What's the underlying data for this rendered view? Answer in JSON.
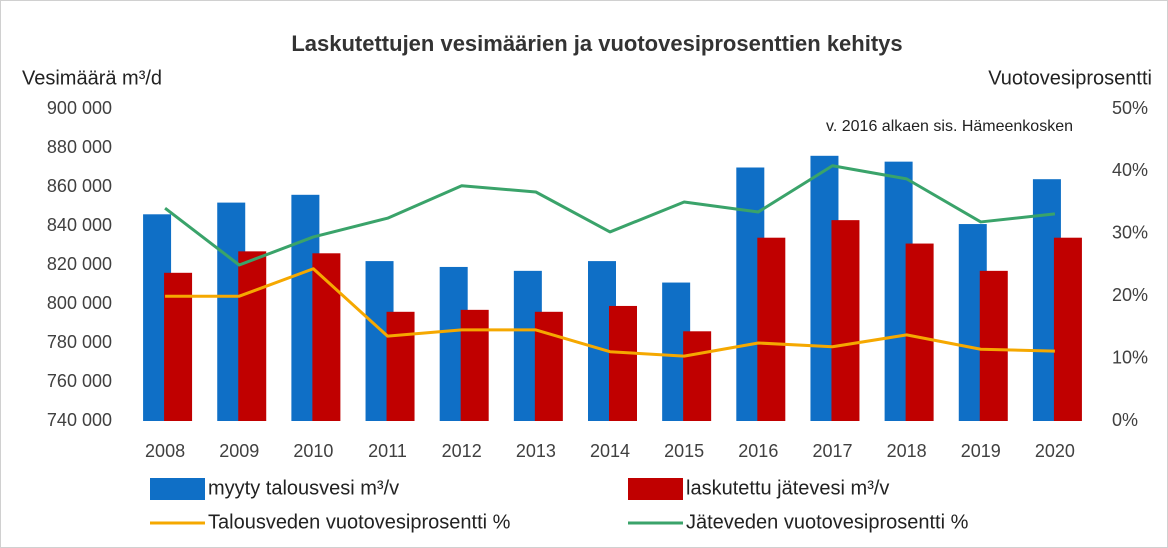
{
  "chart_data": {
    "type": "bar",
    "title": "Laskutettujen vesimäärien ja vuotovesiprosenttien kehitys",
    "y_label": "Vesimäärä m³/d",
    "y2_label": "Vuotovesiprosentti",
    "annotation": "v. 2016 alkaen sis. Hämeenkosken",
    "categories": [
      "2008",
      "2009",
      "2010",
      "2011",
      "2012",
      "2013",
      "2014",
      "2015",
      "2016",
      "2017",
      "2018",
      "2019",
      "2020"
    ],
    "series": [
      {
        "name": "myyty talousvesi m³/v",
        "type": "bar",
        "color": "#0f6fc6",
        "values": [
          846000,
          852000,
          856000,
          822000,
          819000,
          817000,
          822000,
          811000,
          870000,
          876000,
          873000,
          841000,
          864000
        ]
      },
      {
        "name": "laskutettu jätevesi m³/v",
        "type": "bar",
        "color": "#c00000",
        "values": [
          816000,
          827000,
          826000,
          796000,
          797000,
          796000,
          799000,
          786000,
          834000,
          843000,
          831000,
          817000,
          834000
        ]
      },
      {
        "name": "Talousveden vuotovesiprosentti %",
        "type": "line",
        "axis": "y2",
        "color": "#f5a800",
        "values": [
          20,
          20,
          24.4,
          13.6,
          14.6,
          14.6,
          11.1,
          10.4,
          12.5,
          11.9,
          13.8,
          11.5,
          11.2
        ]
      },
      {
        "name": "Jäteveden vuotovesiprosentti %",
        "type": "line",
        "axis": "y2",
        "color": "#3aa36a",
        "values": [
          34.1,
          25,
          29.5,
          32.5,
          37.7,
          36.7,
          30.3,
          35.1,
          33.5,
          40.9,
          38.8,
          31.9,
          33.2
        ]
      }
    ],
    "ylim": [
      740000,
      900000
    ],
    "yticks": [
      {
        "value": 740000,
        "label": "740 000"
      },
      {
        "value": 760000,
        "label": "760 000"
      },
      {
        "value": 780000,
        "label": "780 000"
      },
      {
        "value": 800000,
        "label": "800 000"
      },
      {
        "value": 820000,
        "label": "820 000"
      },
      {
        "value": 840000,
        "label": "840 000"
      },
      {
        "value": 860000,
        "label": "860 000"
      },
      {
        "value": 880000,
        "label": "880 000"
      },
      {
        "value": 900000,
        "label": "900 000"
      }
    ],
    "y2lim": [
      0,
      50
    ],
    "y2ticks": [
      {
        "value": 0,
        "label": "0%"
      },
      {
        "value": 10,
        "label": "10%"
      },
      {
        "value": 20,
        "label": "20%"
      },
      {
        "value": 30,
        "label": "30%"
      },
      {
        "value": 40,
        "label": "40%"
      },
      {
        "value": 50,
        "label": "50%"
      }
    ],
    "grid": false
  }
}
